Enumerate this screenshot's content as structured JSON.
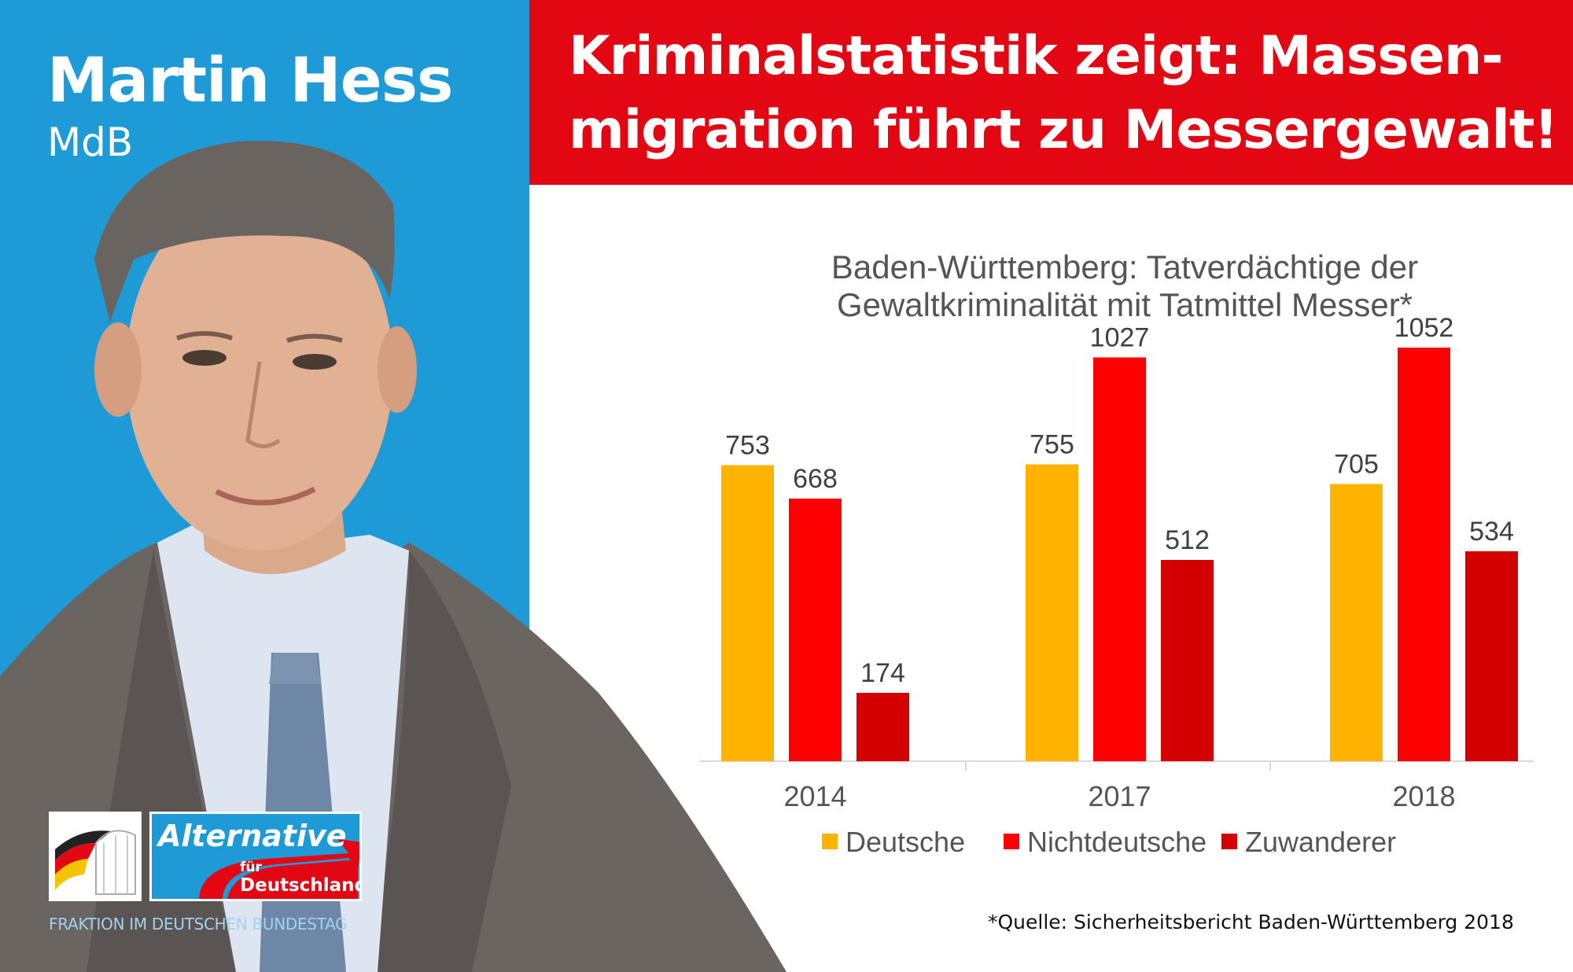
{
  "person": {
    "name": "Martin Hess",
    "role": "MdB"
  },
  "headline": {
    "line1": "Kriminalstatistik zeigt: Massen-",
    "line2": "migration führt zu Messergewalt!"
  },
  "chart_title": {
    "line1": "Baden-Württemberg: Tatverdächtige der",
    "line2": "Gewaltkriminalität mit Tatmittel Messer*"
  },
  "chart_data": {
    "type": "bar",
    "title": "Baden-Württemberg: Tatverdächtige der Gewaltkriminalität mit Tatmittel Messer*",
    "categories": [
      "2014",
      "2017",
      "2018"
    ],
    "series": [
      {
        "name": "Deutsche",
        "values": [
          753,
          755,
          705
        ],
        "color": "#ffb300"
      },
      {
        "name": "Nichtdeutsche",
        "values": [
          668,
          1027,
          1052
        ],
        "color": "#ff0000"
      },
      {
        "name": "Zuwanderer",
        "values": [
          174,
          512,
          534
        ],
        "color": "#d40000"
      }
    ],
    "ylim": [
      0,
      1100
    ],
    "grid": false,
    "legend": "bottom"
  },
  "source": "*Quelle: Sicherheitsbericht Baden-Württemberg 2018",
  "logo": {
    "line1": "Alternative",
    "line2": "für",
    "line3": "Deutschland",
    "fraction": "FRAKTION IM DEUTSCHEN BUNDESTAG"
  },
  "colors": {
    "blue": "#1e9bd7",
    "red": "#e30613"
  }
}
